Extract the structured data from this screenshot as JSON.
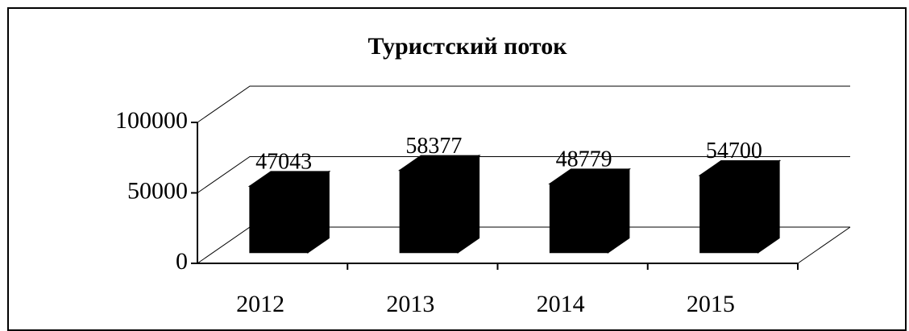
{
  "chart_data": {
    "type": "bar",
    "title": "Туристский поток",
    "categories": [
      "2012",
      "2013",
      "2014",
      "2015"
    ],
    "values": [
      47043,
      58377,
      48779,
      54700
    ],
    "color": "#000000",
    "ylim": [
      0,
      100000
    ],
    "yticks": [
      0,
      50000,
      100000
    ],
    "grid": true
  }
}
